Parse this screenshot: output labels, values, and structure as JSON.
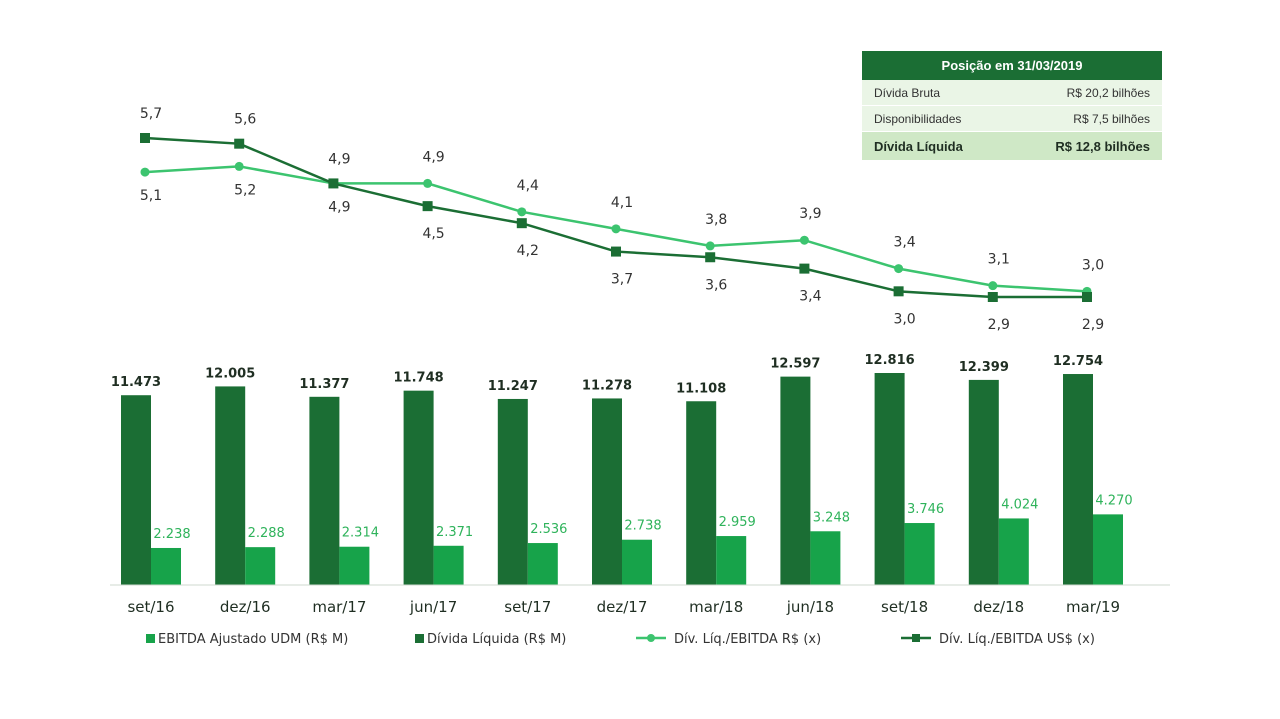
{
  "position_box": {
    "title": "Posição em 31/03/2019",
    "rows": [
      {
        "label": "Dívida Bruta",
        "value": "R$ 20,2 bilhões"
      },
      {
        "label": "Disponibilidades",
        "value": "R$ 7,5 bilhões"
      }
    ],
    "total": {
      "label": "Dívida Líquida",
      "value": "R$ 12,8 bilhões"
    }
  },
  "colors": {
    "dark_green": "#1b6e34",
    "bright_green": "#17a34a",
    "light_line": "#3cc46f",
    "label_dark": "#1f2e22",
    "label_light": "#2fb35b",
    "text_gray": "#555555"
  },
  "chart_data": {
    "type": "bar",
    "categories": [
      "set/16",
      "dez/16",
      "mar/17",
      "jun/17",
      "set/17",
      "dez/17",
      "mar/18",
      "jun/18",
      "set/18",
      "dez/18",
      "mar/19"
    ],
    "series": [
      {
        "name": "Dívida Líquida (R$ M)",
        "type": "bar",
        "values": [
          11473,
          12005,
          11377,
          11748,
          11247,
          11278,
          11108,
          12597,
          12816,
          12399,
          12754
        ],
        "labels": [
          "11.473",
          "12.005",
          "11.377",
          "11.748",
          "11.247",
          "11.278",
          "11.108",
          "12.597",
          "12.816",
          "12.399",
          "12.754"
        ]
      },
      {
        "name": "EBITDA Ajustado UDM (R$ M)",
        "type": "bar",
        "values": [
          2238,
          2288,
          2314,
          2371,
          2536,
          2738,
          2959,
          3248,
          3746,
          4024,
          4270
        ],
        "labels": [
          "2.238",
          "2.288",
          "2.314",
          "2.371",
          "2.536",
          "2.738",
          "2.959",
          "3.248",
          "3.746",
          "4.024",
          "4.270"
        ]
      },
      {
        "name": "Dív. Líq./EBITDA R$ (x)",
        "type": "line",
        "values": [
          5.1,
          5.2,
          4.9,
          4.9,
          4.4,
          4.1,
          3.8,
          3.9,
          3.4,
          3.1,
          3.0
        ],
        "labels": [
          "5,1",
          "5,2",
          "4,9",
          "4,9",
          "4,4",
          "4,1",
          "3,8",
          "3,9",
          "3,4",
          "3,1",
          "3,0"
        ]
      },
      {
        "name": "Dív. Líq./EBITDA US$ (x)",
        "type": "line",
        "values": [
          5.7,
          5.6,
          4.9,
          4.5,
          4.2,
          3.7,
          3.6,
          3.4,
          3.0,
          2.9,
          2.9
        ],
        "labels": [
          "5,7",
          "5,6",
          "4,9",
          "4,5",
          "4,2",
          "3,7",
          "3,6",
          "3,4",
          "3,0",
          "2,9",
          "2,9"
        ]
      }
    ],
    "legend": [
      {
        "label": "EBITDA Ajustado UDM (R$ M)",
        "marker": "square",
        "color": "#17a34a"
      },
      {
        "label": "Dívida Líquida (R$ M)",
        "marker": "square",
        "color": "#1b6e34"
      },
      {
        "label": "Dív. Líq./EBITDA R$ (x)",
        "marker": "line-circle",
        "color": "#3cc46f"
      },
      {
        "label": "Dív. Líq./EBITDA US$ (x)",
        "marker": "line-square",
        "color": "#1b6e34"
      }
    ],
    "legend_position": "bottom",
    "grid": false,
    "bar_ylim": [
      0,
      12816
    ],
    "line_ylim": [
      2.9,
      5.7
    ]
  }
}
